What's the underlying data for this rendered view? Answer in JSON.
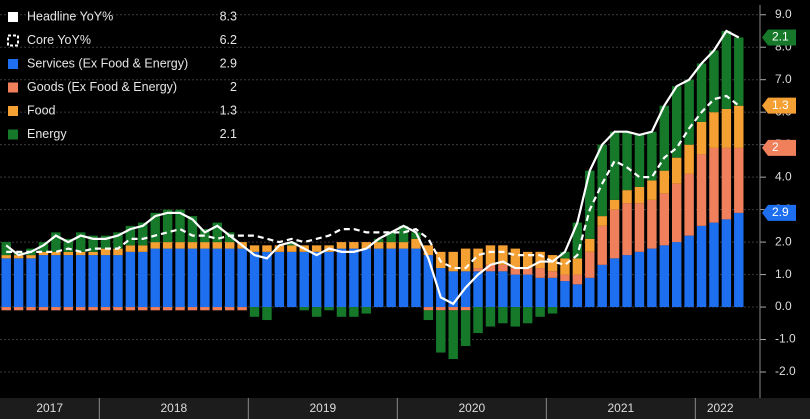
{
  "chart_data": {
    "type": "bar",
    "stacked": true,
    "background": "#000000",
    "grid": true,
    "legend": "top-left",
    "categories": [
      null,
      null,
      null,
      null,
      null,
      null,
      null,
      null,
      null,
      null,
      null,
      null,
      null,
      null,
      null,
      null,
      null,
      null,
      null,
      null,
      null,
      null,
      null,
      null,
      null,
      null,
      null,
      null,
      null,
      null,
      null,
      null,
      null,
      null,
      null,
      null,
      null,
      null,
      null,
      null,
      null,
      null,
      null,
      null,
      null,
      null,
      null,
      null,
      null,
      null,
      null,
      null,
      null,
      null,
      null,
      null,
      null,
      null,
      null,
      null
    ],
    "years": [
      "2017",
      "2018",
      "2019",
      "2020",
      "2021",
      "2022"
    ],
    "year_starts": [
      0,
      8,
      20,
      32,
      44,
      56
    ],
    "ylim": [
      -2.8,
      9.3
    ],
    "yticks": [
      {
        "value": 9,
        "label": "9.0"
      },
      {
        "value": 8,
        "label": "8.0"
      },
      {
        "value": 7,
        "label": "7.0"
      },
      {
        "value": 6,
        "label": "6.0"
      },
      {
        "value": 5,
        "label": "5.0"
      },
      {
        "value": 4,
        "label": "4.0"
      },
      {
        "value": 3,
        "label": "3.0"
      },
      {
        "value": 2,
        "label": "2.0"
      },
      {
        "value": 1,
        "label": "1.0"
      },
      {
        "value": 0,
        "label": "0.0"
      },
      {
        "value": -1,
        "label": "-1.0"
      },
      {
        "value": -2,
        "label": "-2.0"
      }
    ],
    "series": [
      {
        "name": "Headline YoY%",
        "type": "line",
        "dashed": false,
        "color": "#ffffff",
        "values": [
          1.9,
          1.6,
          1.7,
          1.9,
          2.2,
          2.0,
          2.2,
          2.1,
          2.1,
          2.2,
          2.4,
          2.5,
          2.8,
          2.9,
          2.9,
          2.7,
          2.3,
          2.5,
          2.2,
          1.9,
          1.6,
          1.5,
          1.9,
          2.0,
          1.8,
          1.6,
          1.8,
          1.7,
          1.7,
          1.8,
          2.1,
          2.3,
          2.5,
          2.3,
          1.5,
          0.3,
          0.1,
          0.6,
          1.0,
          1.3,
          1.4,
          1.2,
          1.2,
          1.4,
          1.4,
          1.7,
          2.6,
          4.2,
          5.0,
          5.4,
          5.4,
          5.3,
          5.4,
          6.2,
          6.8,
          7.0,
          7.5,
          7.9,
          8.5,
          8.3
        ]
      },
      {
        "name": "Core YoY%",
        "type": "line",
        "dashed": true,
        "color": "#ffffff",
        "values": [
          1.7,
          1.7,
          1.7,
          1.7,
          1.7,
          1.8,
          1.7,
          1.8,
          1.8,
          1.8,
          2.1,
          2.1,
          2.2,
          2.3,
          2.4,
          2.2,
          2.2,
          2.1,
          2.2,
          2.2,
          2.2,
          2.1,
          2.0,
          2.1,
          2.0,
          2.1,
          2.2,
          2.4,
          2.4,
          2.3,
          2.3,
          2.3,
          2.3,
          2.4,
          2.1,
          1.4,
          1.2,
          1.2,
          1.6,
          1.7,
          1.7,
          1.6,
          1.6,
          1.6,
          1.4,
          1.3,
          1.6,
          3.0,
          3.8,
          4.5,
          4.3,
          4.0,
          4.0,
          4.6,
          4.9,
          5.5,
          6.0,
          6.4,
          6.5,
          6.2
        ]
      },
      {
        "name": "Services (Ex Food & Energy)",
        "type": "bar",
        "color": "#1e6ff0",
        "values": [
          1.5,
          1.5,
          1.5,
          1.6,
          1.6,
          1.6,
          1.6,
          1.6,
          1.6,
          1.6,
          1.7,
          1.7,
          1.8,
          1.8,
          1.8,
          1.8,
          1.8,
          1.8,
          1.8,
          1.8,
          1.7,
          1.7,
          1.7,
          1.7,
          1.7,
          1.7,
          1.7,
          1.8,
          1.8,
          1.8,
          1.8,
          1.8,
          1.8,
          1.8,
          1.6,
          1.2,
          1.1,
          1.1,
          1.1,
          1.1,
          1.1,
          1.0,
          1.0,
          0.9,
          0.9,
          0.8,
          0.7,
          0.9,
          1.3,
          1.5,
          1.6,
          1.7,
          1.8,
          1.9,
          2.0,
          2.2,
          2.5,
          2.6,
          2.7,
          2.9
        ]
      },
      {
        "name": "Goods (Ex Food & Energy)",
        "type": "bar",
        "color": "#f07f5c",
        "values": [
          -0.1,
          -0.1,
          -0.1,
          -0.1,
          -0.1,
          -0.1,
          -0.1,
          -0.1,
          -0.1,
          -0.1,
          -0.1,
          -0.1,
          -0.1,
          -0.1,
          -0.1,
          -0.1,
          -0.1,
          -0.1,
          -0.1,
          -0.1,
          0.0,
          0.0,
          0.0,
          0.0,
          0.0,
          0.0,
          0.0,
          0.0,
          0.0,
          0.0,
          0.0,
          0.0,
          0.0,
          0.0,
          -0.1,
          -0.1,
          -0.1,
          -0.1,
          0.1,
          0.2,
          0.2,
          0.2,
          0.2,
          0.3,
          0.2,
          0.2,
          0.3,
          0.8,
          1.2,
          1.5,
          1.6,
          1.5,
          1.5,
          1.6,
          1.8,
          1.9,
          2.2,
          2.3,
          2.2,
          2.0
        ]
      },
      {
        "name": "Food",
        "type": "bar",
        "color": "#f5a032",
        "values": [
          0.1,
          0.1,
          0.1,
          0.1,
          0.1,
          0.1,
          0.1,
          0.1,
          0.2,
          0.2,
          0.2,
          0.2,
          0.2,
          0.2,
          0.2,
          0.2,
          0.2,
          0.2,
          0.2,
          0.2,
          0.2,
          0.2,
          0.2,
          0.2,
          0.2,
          0.2,
          0.2,
          0.2,
          0.2,
          0.2,
          0.2,
          0.2,
          0.2,
          0.3,
          0.3,
          0.5,
          0.6,
          0.7,
          0.6,
          0.6,
          0.6,
          0.6,
          0.5,
          0.5,
          0.5,
          0.5,
          0.5,
          0.4,
          0.3,
          0.3,
          0.4,
          0.5,
          0.6,
          0.7,
          0.8,
          0.9,
          1.0,
          1.1,
          1.2,
          1.3
        ]
      },
      {
        "name": "Energy",
        "type": "bar",
        "color": "#16792a",
        "values": [
          0.4,
          0.1,
          0.2,
          0.3,
          0.6,
          0.4,
          0.6,
          0.5,
          0.4,
          0.5,
          0.6,
          0.7,
          0.9,
          1.0,
          1.0,
          0.8,
          0.4,
          0.6,
          0.3,
          0.0,
          -0.3,
          -0.4,
          0.0,
          0.1,
          -0.1,
          -0.3,
          -0.1,
          -0.3,
          -0.3,
          -0.2,
          0.1,
          0.3,
          0.5,
          0.2,
          -0.3,
          -1.3,
          -1.5,
          -1.1,
          -0.8,
          -0.6,
          -0.5,
          -0.6,
          -0.5,
          -0.3,
          -0.2,
          0.2,
          1.1,
          2.1,
          2.2,
          2.1,
          1.8,
          1.6,
          1.5,
          2.0,
          2.2,
          2.0,
          1.8,
          1.9,
          2.4,
          2.1
        ]
      }
    ]
  }
}
